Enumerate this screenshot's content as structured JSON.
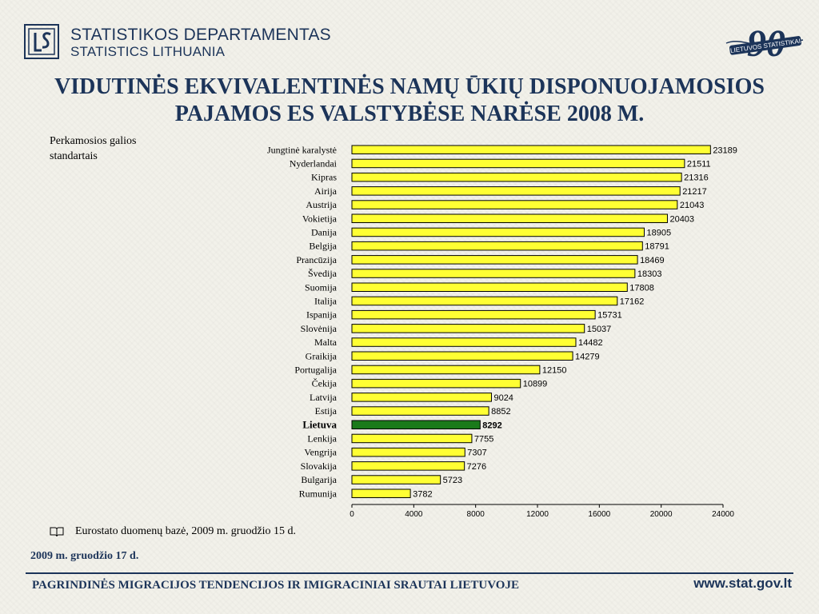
{
  "header": {
    "org_name_lt": "STATISTIKOS DEPARTAMENTAS",
    "org_name_en": "STATISTICS LITHUANIA",
    "anniversary_number": "90",
    "anniversary_text": "LIETUVOS STATISTIKAI"
  },
  "title_line1": "VIDUTINĖS EKVIVALENTINĖS NAMŲ ŪKIŲ DISPONUOJAMOSIOS",
  "title_line2": "PAJAMOS ES VALSTYBĖSE NARĖSE 2008 M.",
  "unit_label": "Perkamosios galios standartais",
  "source_note": "Eurostato duomenų bazė, 2009 m. gruodžio 15 d.",
  "date": "2009 m. gruodžio 17 d.",
  "footer": {
    "title": "PAGRINDINĖS MIGRACIJOS TENDENCIJOS IR IMIGRACINIAI SRAUTAI  LIETUVOJE",
    "url": "www.stat.gov.lt"
  },
  "colors": {
    "bar_fill": "#ffff33",
    "highlight_fill": "#1a7a1a",
    "brand_navy": "#1c3459"
  },
  "chart_data": {
    "type": "bar",
    "orientation": "horizontal",
    "title": "VIDUTINĖS EKVIVALENTINĖS NAMŲ ŪKIŲ DISPONUOJAMOSIOS PAJAMOS ES VALSTYBĖSE NARĖSE 2008 M.",
    "xlabel": "",
    "ylabel": "Perkamosios galios standartais",
    "xlim": [
      0,
      24000
    ],
    "xticks": [
      0,
      4000,
      8000,
      12000,
      16000,
      20000,
      24000
    ],
    "categories": [
      "Jungtinė karalystė",
      "Nyderlandai",
      "Kipras",
      "Airija",
      "Austrija",
      "Vokietija",
      "Danija",
      "Belgija",
      "Prancūzija",
      "Švedija",
      "Suomija",
      "Italija",
      "Ispanija",
      "Slovėnija",
      "Malta",
      "Graikija",
      "Portugalija",
      "Čekija",
      "Latvija",
      "Estija",
      "Lietuva",
      "Lenkija",
      "Vengrija",
      "Slovakija",
      "Bulgarija",
      "Rumunija"
    ],
    "values": [
      23189,
      21511,
      21316,
      21217,
      21043,
      20403,
      18905,
      18791,
      18469,
      18303,
      17808,
      17162,
      15731,
      15037,
      14482,
      14279,
      12150,
      10899,
      9024,
      8852,
      8292,
      7755,
      7307,
      7276,
      5723,
      3782
    ],
    "highlight": "Lietuva",
    "grid": false,
    "legend": "none"
  }
}
